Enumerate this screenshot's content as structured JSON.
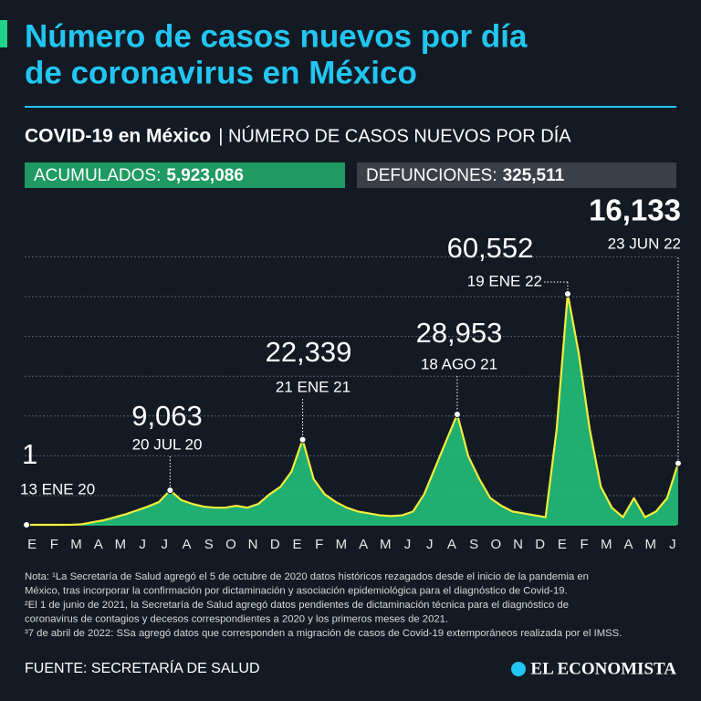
{
  "chart_data": {
    "type": "line",
    "title_lines": [
      "Número de casos nuevos por día",
      "de coronavirus en México"
    ],
    "subtitle_bold": "COVID-19 en México",
    "subtitle": "| NÚMERO DE CASOS NUEVOS POR DÍA",
    "stats": [
      {
        "label": "ACUMULADOS:",
        "value": 5923086,
        "value_label": "5,923,086",
        "color": "#1f9a62"
      },
      {
        "label": "DEFUNCIONES:",
        "value": 325511,
        "value_label": "325,511",
        "color": "#3b4048"
      }
    ],
    "categories": [
      "E",
      null,
      "F",
      null,
      "M",
      null,
      "A",
      null,
      "M",
      null,
      "J",
      null,
      "J",
      null,
      "A",
      null,
      "S",
      null,
      "O",
      null,
      "N",
      null,
      "D",
      null,
      "E",
      null,
      "F",
      null,
      "M",
      null,
      "A",
      null,
      "M",
      null,
      "J",
      null,
      "J",
      null,
      "A",
      null,
      "S",
      null,
      "O",
      null,
      "N",
      null,
      "D",
      null,
      "E",
      null,
      "F",
      null,
      "M",
      null,
      "A",
      null,
      "M",
      null,
      "J",
      null
    ],
    "series": [
      {
        "color": "#f2ee3b",
        "area_color": "#22c97f",
        "values": [
          1,
          0,
          0,
          0,
          10,
          150,
          700,
          1200,
          2000,
          2800,
          3800,
          4800,
          6000,
          9063,
          6500,
          5500,
          4800,
          4500,
          4500,
          5000,
          4500,
          5500,
          8000,
          10000,
          14000,
          22339,
          12000,
          8000,
          6000,
          4500,
          3500,
          3000,
          2500,
          2300,
          2500,
          3500,
          8000,
          15000,
          22000,
          28953,
          18000,
          12000,
          7000,
          5000,
          3500,
          3000,
          2500,
          2000,
          25000,
          60552,
          45000,
          25000,
          10000,
          4500,
          2000,
          7000,
          2000,
          3500,
          7000,
          16133
        ]
      }
    ],
    "highlights": {
      "values": [
        1,
        9063,
        22339,
        28953,
        60552,
        16133
      ],
      "value_labels": [
        "1",
        "9,063",
        "22,339",
        "28,953",
        "60,552",
        "16,133"
      ],
      "dates": [
        "13 ENE 20",
        "20 JUL 20",
        "21 ENE 21",
        "18 AGO 21",
        "19 ENE 22",
        "23 JUN 22"
      ]
    },
    "notes": [
      "Nota: ¹La Secretaría de Salud agregó el 5 de octubre de 2020 datos históricos rezagados desde el inicio de la pandemia en",
      "México, tras incorporar la confirmación por dictaminación y asociación epidemiológica para el diagnóstico de Covid-19.",
      "²El 1 de junio de 2021, la Secretaría de Salud agregó datos pendientes de dictaminación técnica para el diagnóstico de",
      "coronavirus de contagios y decesos correspondientes a 2020 y los primeros meses de 2021.",
      "³7 de abril de 2022: SSa agregó datos que corresponden a migración de casos de Covid-19 extemporáneos realizada por el IMSS."
    ],
    "source": "FUENTE: SECRETARÍA DE SALUD",
    "brand": "EL ECONOMISTA"
  }
}
